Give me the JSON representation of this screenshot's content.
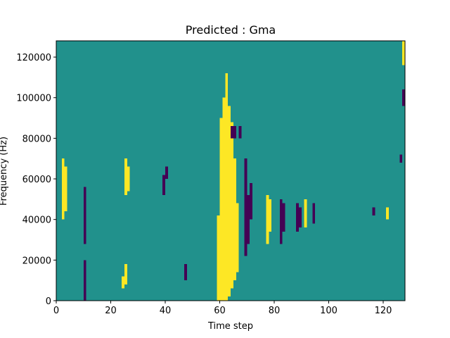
{
  "chart_data": {
    "type": "heatmap",
    "title": "Predicted : Gma",
    "xlabel": "Time step",
    "ylabel": "Frequency (Hz)",
    "xlim": [
      0,
      128
    ],
    "ylim": [
      0,
      128000
    ],
    "xticks": [
      0,
      20,
      40,
      60,
      80,
      100,
      120
    ],
    "yticks": [
      0,
      20000,
      40000,
      60000,
      80000,
      100000,
      120000
    ],
    "xtick_labels": [
      "0",
      "20",
      "40",
      "60",
      "80",
      "100",
      "120"
    ],
    "ytick_labels": [
      "0",
      "20000",
      "40000",
      "60000",
      "80000",
      "100000",
      "120000"
    ],
    "grid": false,
    "legend": "none",
    "n_time_steps": 128,
    "n_frequency_bins": 128,
    "values": [
      -1,
      0,
      1
    ],
    "colors": {
      "-1": "#440154",
      "0": "#21918c",
      "1": "#fde725"
    },
    "background_value": 0,
    "cells": [
      {
        "x": 59,
        "y0": 0,
        "y1": 42000,
        "v": 1
      },
      {
        "x": 60,
        "y0": 0,
        "y1": 90000,
        "v": 1
      },
      {
        "x": 61,
        "y0": 0,
        "y1": 100000,
        "v": 1
      },
      {
        "x": 62,
        "y0": 0,
        "y1": 112000,
        "v": 1
      },
      {
        "x": 63,
        "y0": 2000,
        "y1": 96000,
        "v": 1
      },
      {
        "x": 64,
        "y0": 6000,
        "y1": 88000,
        "v": 1
      },
      {
        "x": 65,
        "y0": 10000,
        "y1": 70000,
        "v": 1
      },
      {
        "x": 66,
        "y0": 14000,
        "y1": 48000,
        "v": 1
      },
      {
        "x": 69,
        "y0": 22000,
        "y1": 70000,
        "v": -1
      },
      {
        "x": 70,
        "y0": 28000,
        "y1": 52000,
        "v": -1
      },
      {
        "x": 71,
        "y0": 40000,
        "y1": 58000,
        "v": -1
      },
      {
        "x": 77,
        "y0": 28000,
        "y1": 52000,
        "v": 1
      },
      {
        "x": 78,
        "y0": 34000,
        "y1": 50000,
        "v": 1
      },
      {
        "x": 82,
        "y0": 28000,
        "y1": 50000,
        "v": -1
      },
      {
        "x": 83,
        "y0": 34000,
        "y1": 48000,
        "v": -1
      },
      {
        "x": 88,
        "y0": 34000,
        "y1": 48000,
        "v": -1
      },
      {
        "x": 89,
        "y0": 36000,
        "y1": 46000,
        "v": -1
      },
      {
        "x": 91,
        "y0": 36000,
        "y1": 50000,
        "v": 1
      },
      {
        "x": 94,
        "y0": 38000,
        "y1": 48000,
        "v": -1
      },
      {
        "x": 64,
        "y0": 80000,
        "y1": 86000,
        "v": -1
      },
      {
        "x": 65,
        "y0": 80000,
        "y1": 86000,
        "v": -1
      },
      {
        "x": 67,
        "y0": 80000,
        "y1": 86000,
        "v": -1
      },
      {
        "x": 25,
        "y0": 52000,
        "y1": 70000,
        "v": 1
      },
      {
        "x": 26,
        "y0": 54000,
        "y1": 66000,
        "v": 1
      },
      {
        "x": 25,
        "y0": 8000,
        "y1": 18000,
        "v": 1
      },
      {
        "x": 24,
        "y0": 6000,
        "y1": 12000,
        "v": 1
      },
      {
        "x": 2,
        "y0": 40000,
        "y1": 70000,
        "v": 1
      },
      {
        "x": 3,
        "y0": 44000,
        "y1": 66000,
        "v": 1
      },
      {
        "x": 10,
        "y0": 0,
        "y1": 20000,
        "v": -1
      },
      {
        "x": 10,
        "y0": 28000,
        "y1": 56000,
        "v": -1
      },
      {
        "x": 39,
        "y0": 52000,
        "y1": 62000,
        "v": -1
      },
      {
        "x": 40,
        "y0": 60000,
        "y1": 66000,
        "v": -1
      },
      {
        "x": 47,
        "y0": 10000,
        "y1": 18000,
        "v": -1
      },
      {
        "x": 116,
        "y0": 42000,
        "y1": 46000,
        "v": -1
      },
      {
        "x": 121,
        "y0": 40000,
        "y1": 46000,
        "v": 1
      },
      {
        "x": 126,
        "y0": 68000,
        "y1": 72000,
        "v": -1
      },
      {
        "x": 127,
        "y0": 96000,
        "y1": 104000,
        "v": -1
      },
      {
        "x": 127,
        "y0": 116000,
        "y1": 128000,
        "v": 1
      }
    ]
  }
}
